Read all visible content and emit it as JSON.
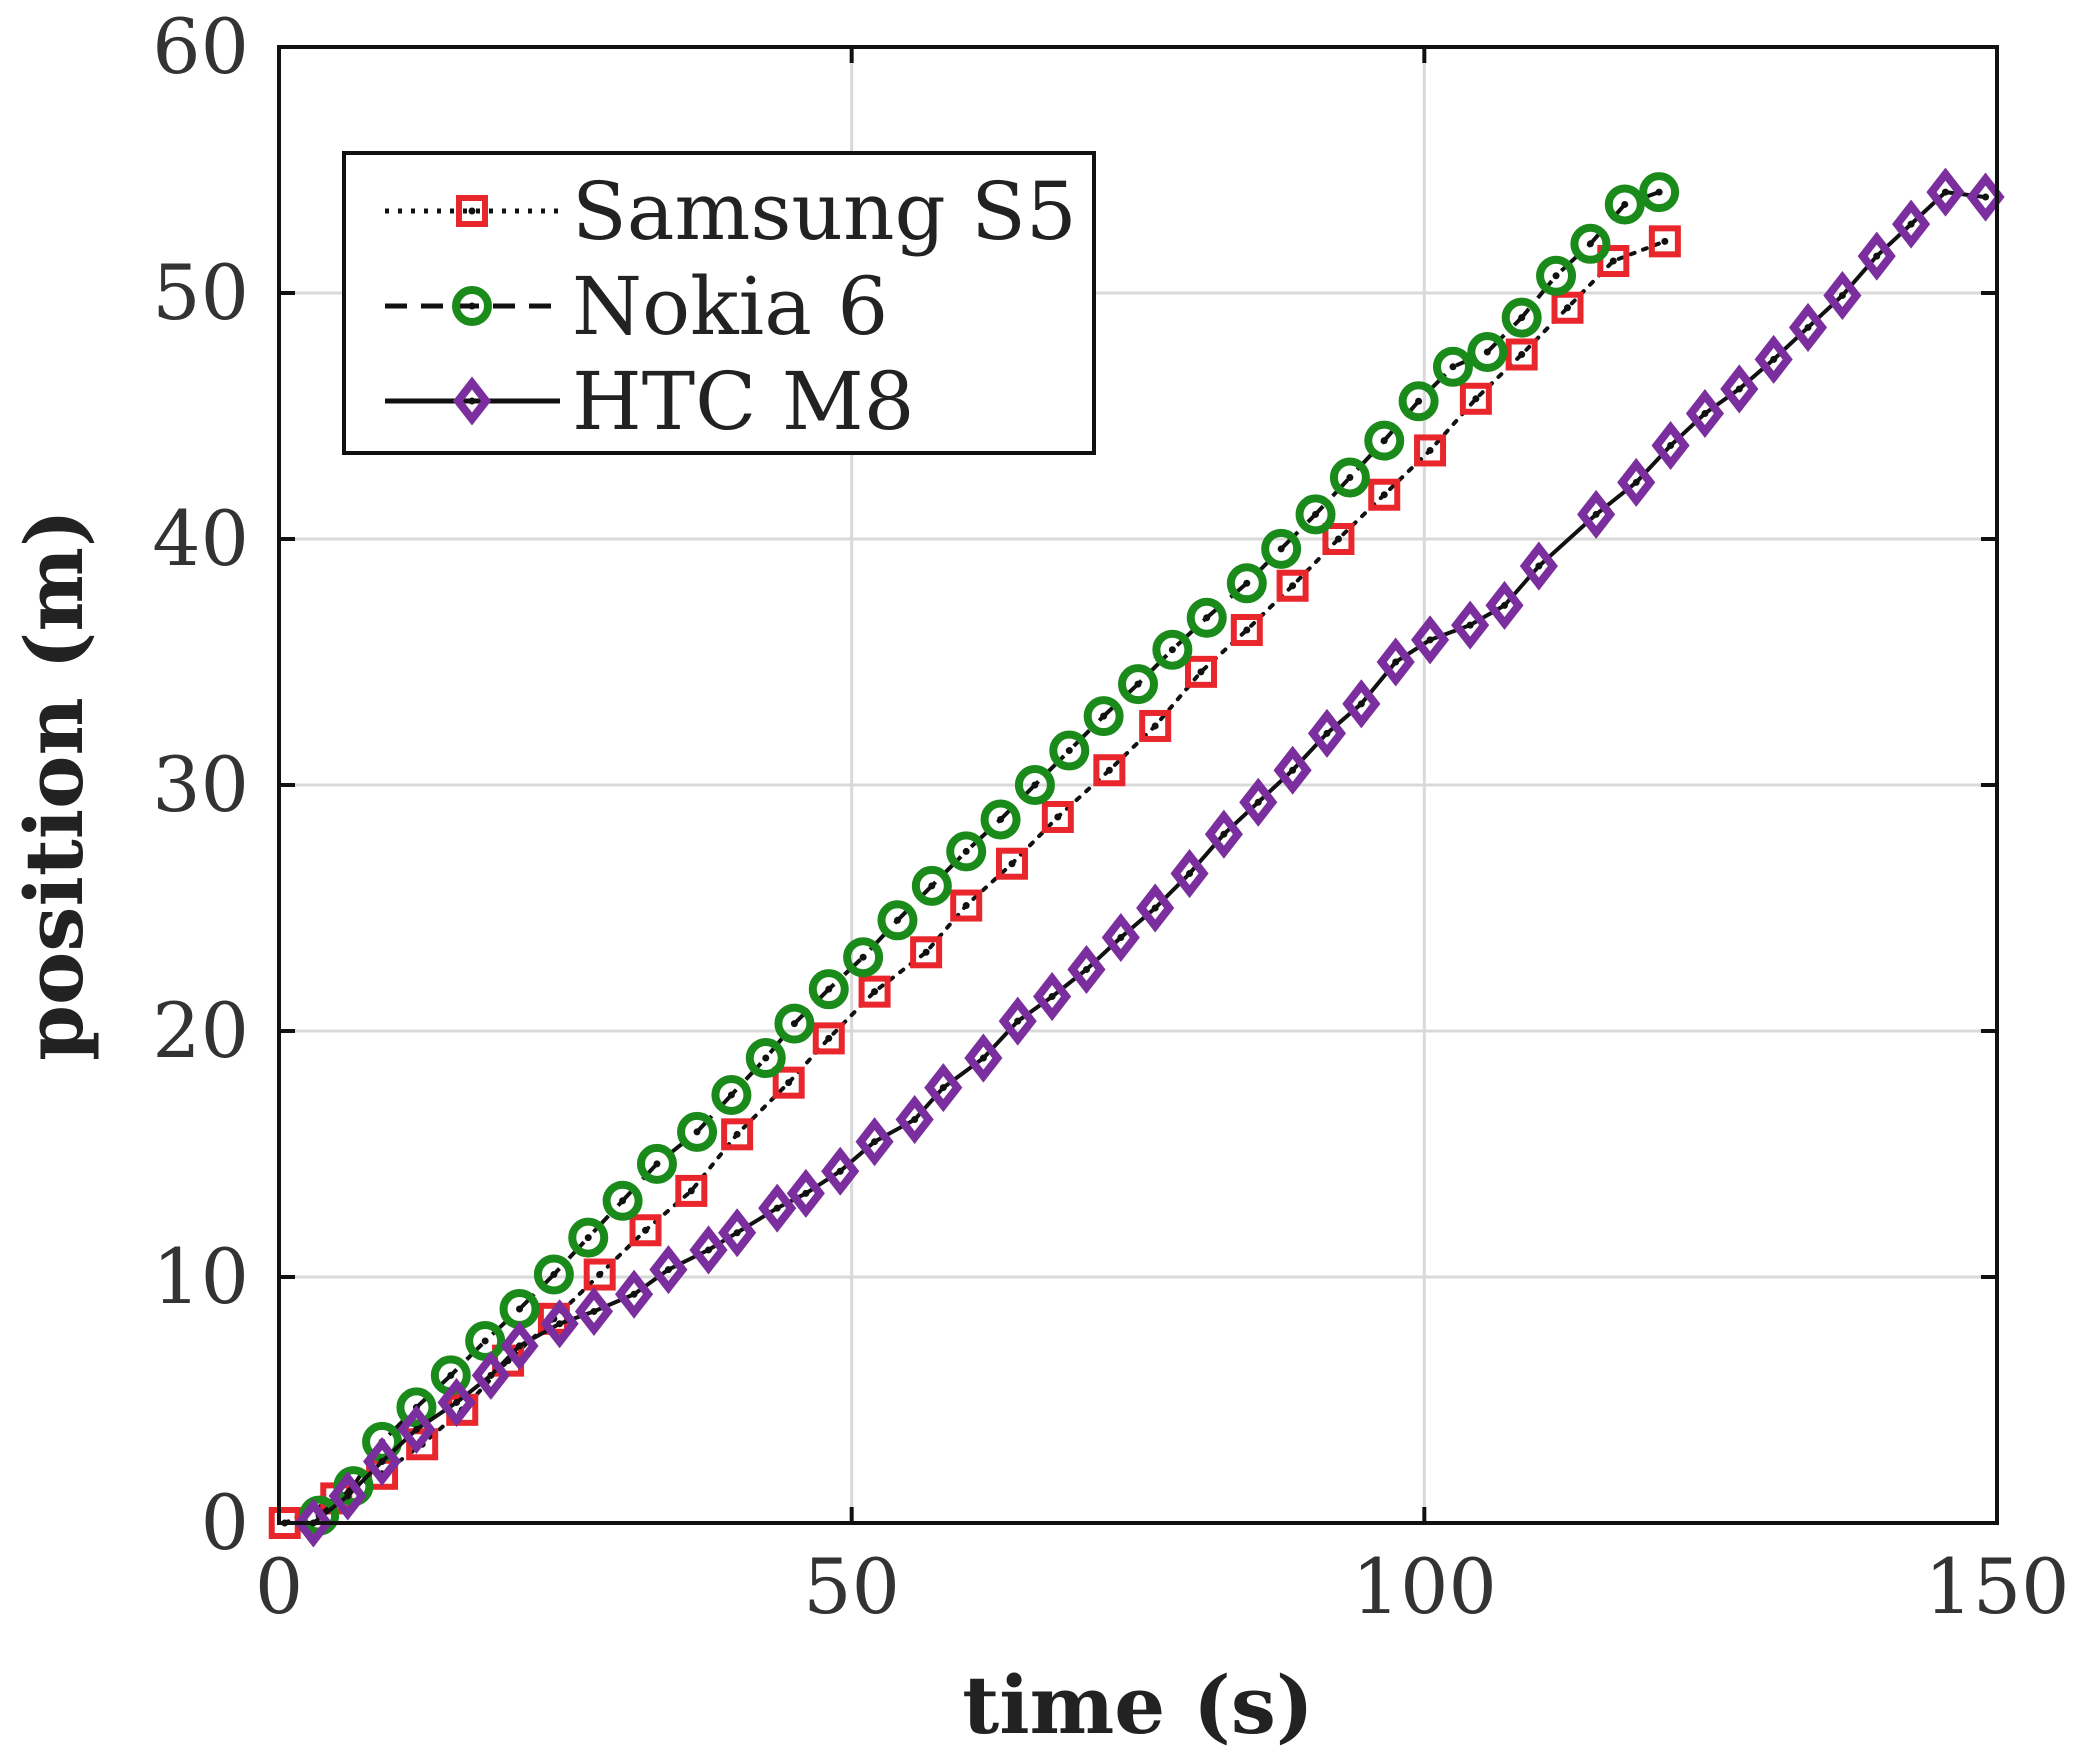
{
  "chart_data": {
    "type": "line",
    "title": "",
    "xlabel": "time (s)",
    "ylabel": "position (m)",
    "xlim": [
      0,
      150
    ],
    "ylim": [
      0,
      60
    ],
    "xticks": [
      0,
      50,
      100,
      150
    ],
    "yticks": [
      0,
      10,
      20,
      30,
      40,
      50,
      60
    ],
    "xtick_labels": [
      "0",
      "50",
      "100",
      "150"
    ],
    "ytick_labels": [
      "0",
      "10",
      "20",
      "30",
      "40",
      "50",
      "60"
    ],
    "grid": true,
    "legend_position": "top-left",
    "series": [
      {
        "name": "Samsung S5",
        "line_style": "dotted",
        "line_color": "#111111",
        "marker": "square",
        "marker_color": "#e8262b",
        "points": [
          [
            0.5,
            0.0
          ],
          [
            5.0,
            1.0
          ],
          [
            9.0,
            2.0
          ],
          [
            12.5,
            3.2
          ],
          [
            16.0,
            4.6
          ],
          [
            20.0,
            6.6
          ],
          [
            24.0,
            8.3
          ],
          [
            28.0,
            10.1
          ],
          [
            32.0,
            11.9
          ],
          [
            36.0,
            13.5
          ],
          [
            40.0,
            15.8
          ],
          [
            44.5,
            17.9
          ],
          [
            48.0,
            19.7
          ],
          [
            52.0,
            21.6
          ],
          [
            56.5,
            23.2
          ],
          [
            60.0,
            25.1
          ],
          [
            64.0,
            26.8
          ],
          [
            68.0,
            28.7
          ],
          [
            72.5,
            30.6
          ],
          [
            76.5,
            32.4
          ],
          [
            80.5,
            34.6
          ],
          [
            84.5,
            36.3
          ],
          [
            88.5,
            38.1
          ],
          [
            92.5,
            40.0
          ],
          [
            96.5,
            41.8
          ],
          [
            100.5,
            43.6
          ],
          [
            104.5,
            45.7
          ],
          [
            108.5,
            47.5
          ],
          [
            112.5,
            49.4
          ],
          [
            116.5,
            51.3
          ],
          [
            121.0,
            52.1
          ]
        ]
      },
      {
        "name": "Nokia 6",
        "line_style": "dashed",
        "line_color": "#111111",
        "marker": "circle",
        "marker_color": "#1a8a1a",
        "points": [
          [
            3.5,
            0.3
          ],
          [
            6.5,
            1.5
          ],
          [
            9.0,
            3.3
          ],
          [
            12.0,
            4.7
          ],
          [
            15.0,
            6.0
          ],
          [
            18.0,
            7.4
          ],
          [
            21.0,
            8.7
          ],
          [
            24.0,
            10.1
          ],
          [
            27.0,
            11.6
          ],
          [
            30.0,
            13.1
          ],
          [
            33.0,
            14.6
          ],
          [
            36.5,
            15.9
          ],
          [
            39.5,
            17.4
          ],
          [
            42.5,
            18.9
          ],
          [
            45.0,
            20.3
          ],
          [
            48.0,
            21.7
          ],
          [
            51.0,
            23.0
          ],
          [
            54.0,
            24.5
          ],
          [
            57.0,
            25.9
          ],
          [
            60.0,
            27.3
          ],
          [
            63.0,
            28.6
          ],
          [
            66.0,
            30.0
          ],
          [
            69.0,
            31.4
          ],
          [
            72.0,
            32.8
          ],
          [
            75.0,
            34.1
          ],
          [
            78.0,
            35.5
          ],
          [
            81.0,
            36.8
          ],
          [
            84.5,
            38.2
          ],
          [
            87.5,
            39.6
          ],
          [
            90.5,
            41.0
          ],
          [
            93.5,
            42.5
          ],
          [
            96.5,
            44.0
          ],
          [
            99.5,
            45.6
          ],
          [
            102.5,
            47.0
          ],
          [
            105.5,
            47.6
          ],
          [
            108.5,
            49.0
          ],
          [
            111.5,
            50.7
          ],
          [
            114.5,
            52.0
          ],
          [
            117.5,
            53.6
          ],
          [
            120.5,
            54.1
          ]
        ]
      },
      {
        "name": "HTC M8",
        "line_style": "solid",
        "line_color": "#111111",
        "marker": "diamond",
        "marker_color": "#7b2f9e",
        "points": [
          [
            3.0,
            0.0
          ],
          [
            6.0,
            1.1
          ],
          [
            9.0,
            2.5
          ],
          [
            12.0,
            3.8
          ],
          [
            15.5,
            4.9
          ],
          [
            18.5,
            6.0
          ],
          [
            21.0,
            7.2
          ],
          [
            24.5,
            8.1
          ],
          [
            27.5,
            8.6
          ],
          [
            31.0,
            9.3
          ],
          [
            34.0,
            10.3
          ],
          [
            37.5,
            11.1
          ],
          [
            40.0,
            11.8
          ],
          [
            43.5,
            12.8
          ],
          [
            46.0,
            13.4
          ],
          [
            49.0,
            14.3
          ],
          [
            52.0,
            15.5
          ],
          [
            55.5,
            16.4
          ],
          [
            58.0,
            17.7
          ],
          [
            61.5,
            18.9
          ],
          [
            64.5,
            20.4
          ],
          [
            67.5,
            21.4
          ],
          [
            70.5,
            22.5
          ],
          [
            73.5,
            23.8
          ],
          [
            76.5,
            25.0
          ],
          [
            79.5,
            26.4
          ],
          [
            82.5,
            28.0
          ],
          [
            85.5,
            29.3
          ],
          [
            88.5,
            30.6
          ],
          [
            91.5,
            32.1
          ],
          [
            94.5,
            33.3
          ],
          [
            97.5,
            35.0
          ],
          [
            100.5,
            35.9
          ],
          [
            104.0,
            36.5
          ],
          [
            107.0,
            37.3
          ],
          [
            110.0,
            38.9
          ],
          [
            115.0,
            41.0
          ],
          [
            118.5,
            42.3
          ],
          [
            121.5,
            43.8
          ],
          [
            124.5,
            45.1
          ],
          [
            127.5,
            46.1
          ],
          [
            130.5,
            47.3
          ],
          [
            133.5,
            48.6
          ],
          [
            136.5,
            49.9
          ],
          [
            139.5,
            51.5
          ],
          [
            142.5,
            52.8
          ],
          [
            145.5,
            54.1
          ],
          [
            149.0,
            53.9
          ]
        ]
      }
    ]
  }
}
